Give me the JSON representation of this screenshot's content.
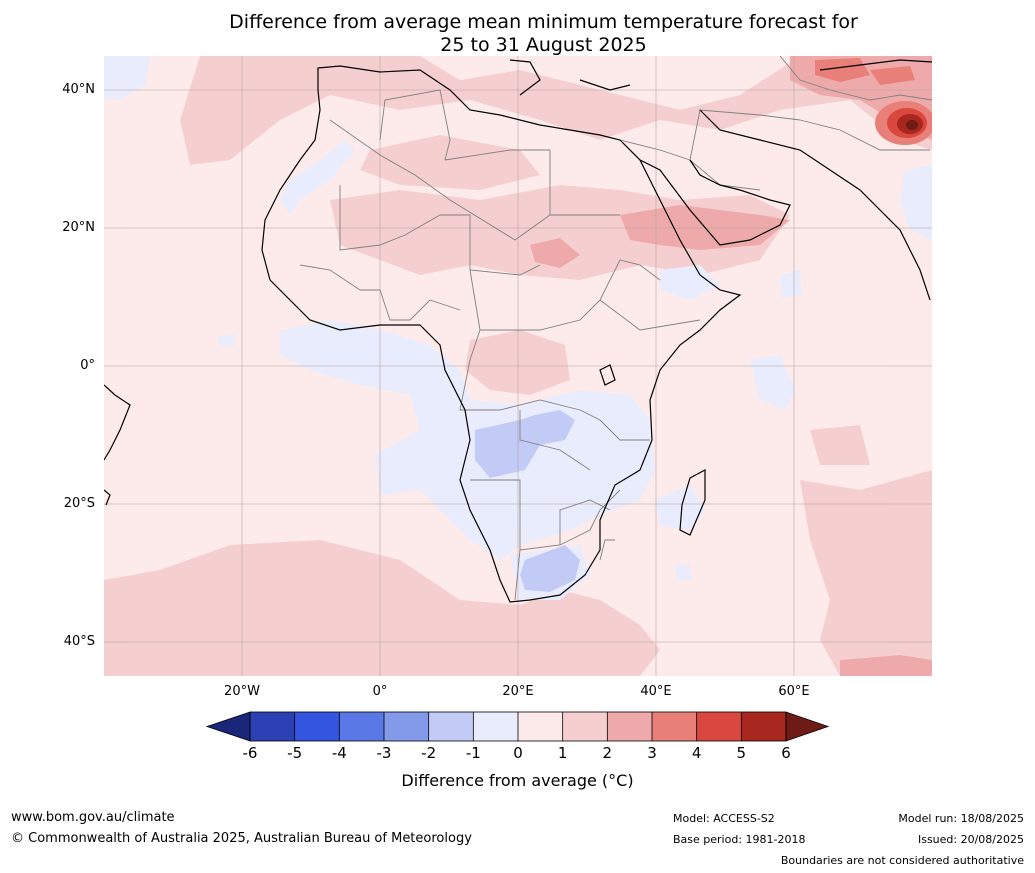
{
  "title": {
    "line1": "Difference from average mean minimum temperature forecast for",
    "line2": "25 to 31 August 2025"
  },
  "map": {
    "lat_labels": [
      "40°N",
      "20°N",
      "0°",
      "20°S",
      "40°S"
    ],
    "lon_labels": [
      "20°W",
      "0°",
      "20°E",
      "40°E",
      "60°E"
    ]
  },
  "colorbar": {
    "ticks": [
      "-6",
      "-5",
      "-4",
      "-3",
      "-2",
      "-1",
      "0",
      "1",
      "2",
      "3",
      "4",
      "5",
      "6"
    ],
    "colors": [
      "#19267a",
      "#2a40b3",
      "#3355e0",
      "#5a78e6",
      "#8399ea",
      "#c2cbf5",
      "#e9ecfd",
      "#fdebeb",
      "#f5cfcf",
      "#eeaaaa",
      "#e88079",
      "#d9473e",
      "#a8271f",
      "#6e1a15"
    ],
    "label": "Difference from average (°C)"
  },
  "footer": {
    "website": "www.bom.gov.au/climate",
    "copyright": "© Commonwealth of Australia 2025, Australian Bureau of Meteorology",
    "model": "Model: ACCESS-S2",
    "base_period": "Base period: 1981-2018",
    "model_run": "Model run: 18/08/2025",
    "issued": "Issued: 20/08/2025",
    "boundaries_note": "Boundaries are not considered authoritative"
  }
}
